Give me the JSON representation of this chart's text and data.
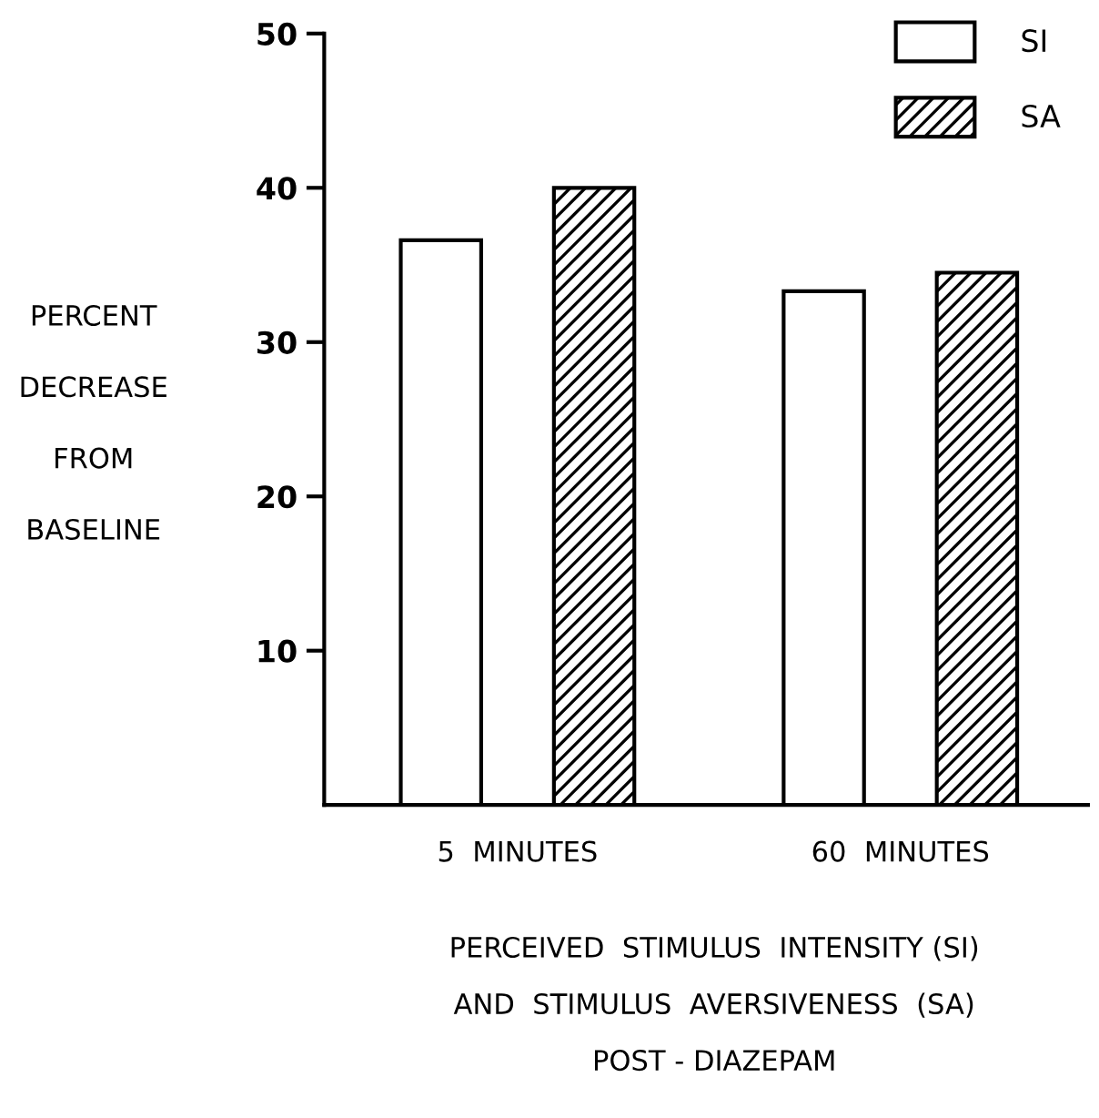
{
  "chart_data": {
    "type": "bar",
    "categories": [
      "5  MINUTES",
      "60  MINUTES"
    ],
    "series": [
      {
        "name": "SI",
        "color": "#ffffff",
        "values": [
          36.6,
          33.3
        ]
      },
      {
        "name": "SA",
        "color": "#000000",
        "values": [
          40,
          34.5
        ]
      }
    ],
    "ylabel": "PERCENT\nDECREASE\nFROM\nBASELINE",
    "xlabel": "PERCEIVED  STIMULUS  INTENSITY (SI)\nAND  STIMULUS  AVERSIVENESS  (SA)\nPOST - DIAZEPAM",
    "ylim": [
      0,
      50
    ],
    "yticks": [
      10,
      20,
      30,
      40,
      50
    ],
    "legend": "top right",
    "grid": false
  }
}
